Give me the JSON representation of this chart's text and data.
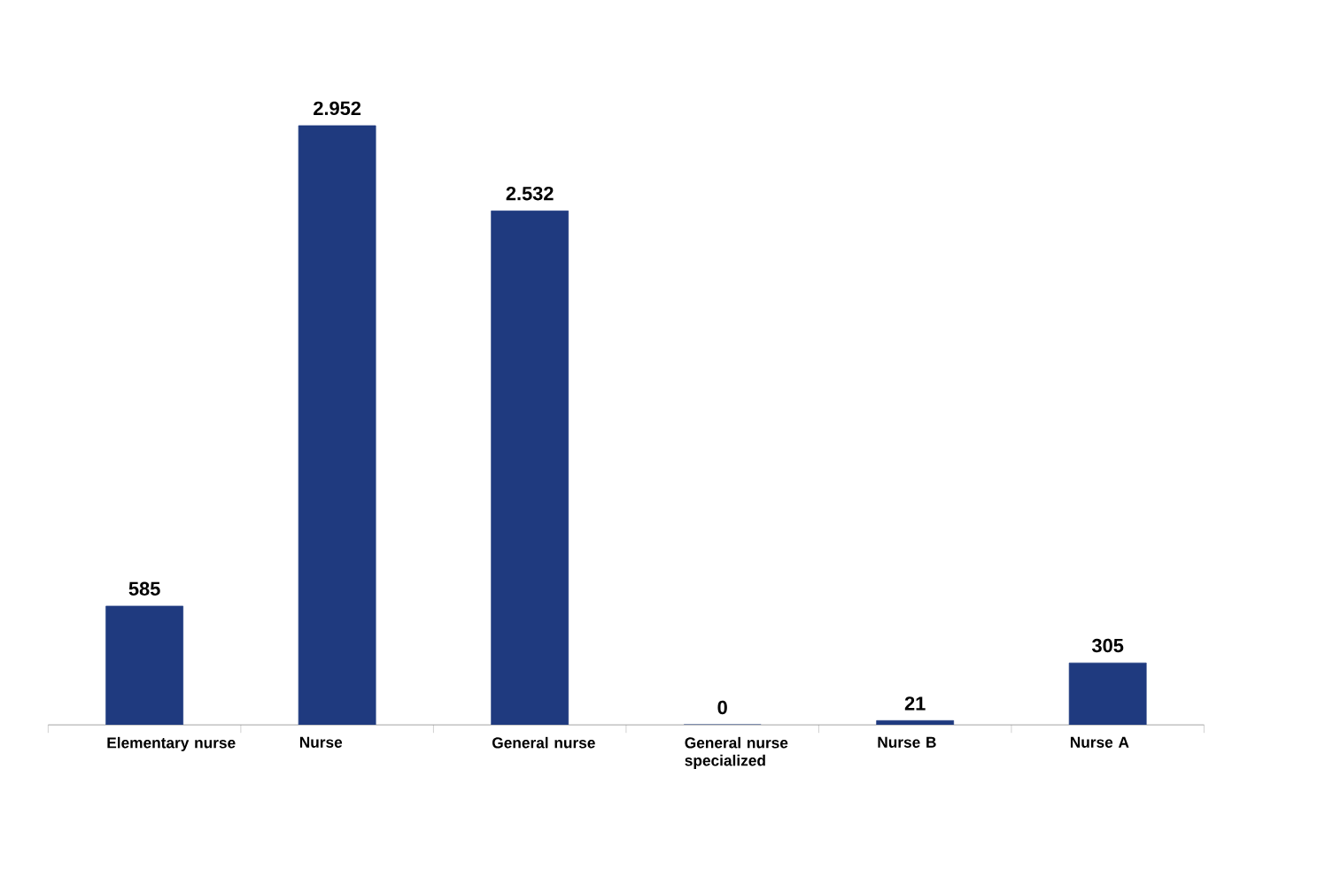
{
  "chart_data": {
    "type": "bar",
    "categories": [
      "Elementary nurse",
      "Nurse",
      "General nurse",
      "General nurse specialized",
      "Nurse B",
      "Nurse A"
    ],
    "values": [
      585,
      2952,
      2532,
      0,
      21,
      305
    ],
    "value_labels": [
      "585",
      "2.952",
      "2.532",
      "0",
      "21",
      "305"
    ],
    "color": "#1f3a7f",
    "tick_labels": "x"
  }
}
